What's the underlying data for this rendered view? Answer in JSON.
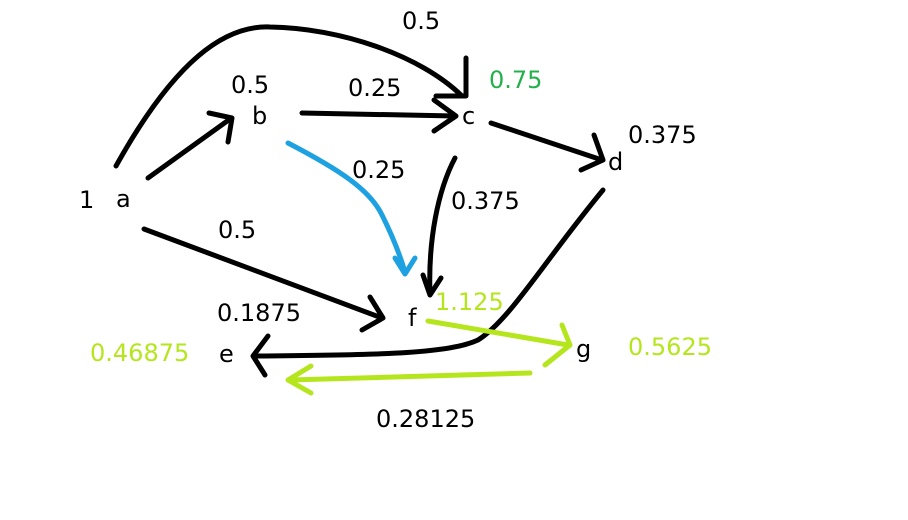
{
  "nodes": {
    "a": "a",
    "b": "b",
    "c": "c",
    "d": "d",
    "e": "e",
    "f": "f",
    "g": "g"
  },
  "values": {
    "a": "1",
    "b": "0.5",
    "c": "0.75",
    "d": "0.375",
    "e": "0.46875",
    "f": "1.125",
    "g": "0.5625"
  },
  "edge_labels": {
    "a_c": "0.5",
    "b_c": "0.25",
    "b_f": "0.25",
    "c_f": "0.375",
    "a_f": "0.5",
    "d_e": "0.1875",
    "g_e": "0.28125"
  },
  "colors": {
    "edge": "#000000",
    "edge_b_f": "#1ea1e0",
    "edge_f_g_e": "#b5e61d",
    "value_c": "#22b14c",
    "value_lime": "#b5e61d"
  }
}
